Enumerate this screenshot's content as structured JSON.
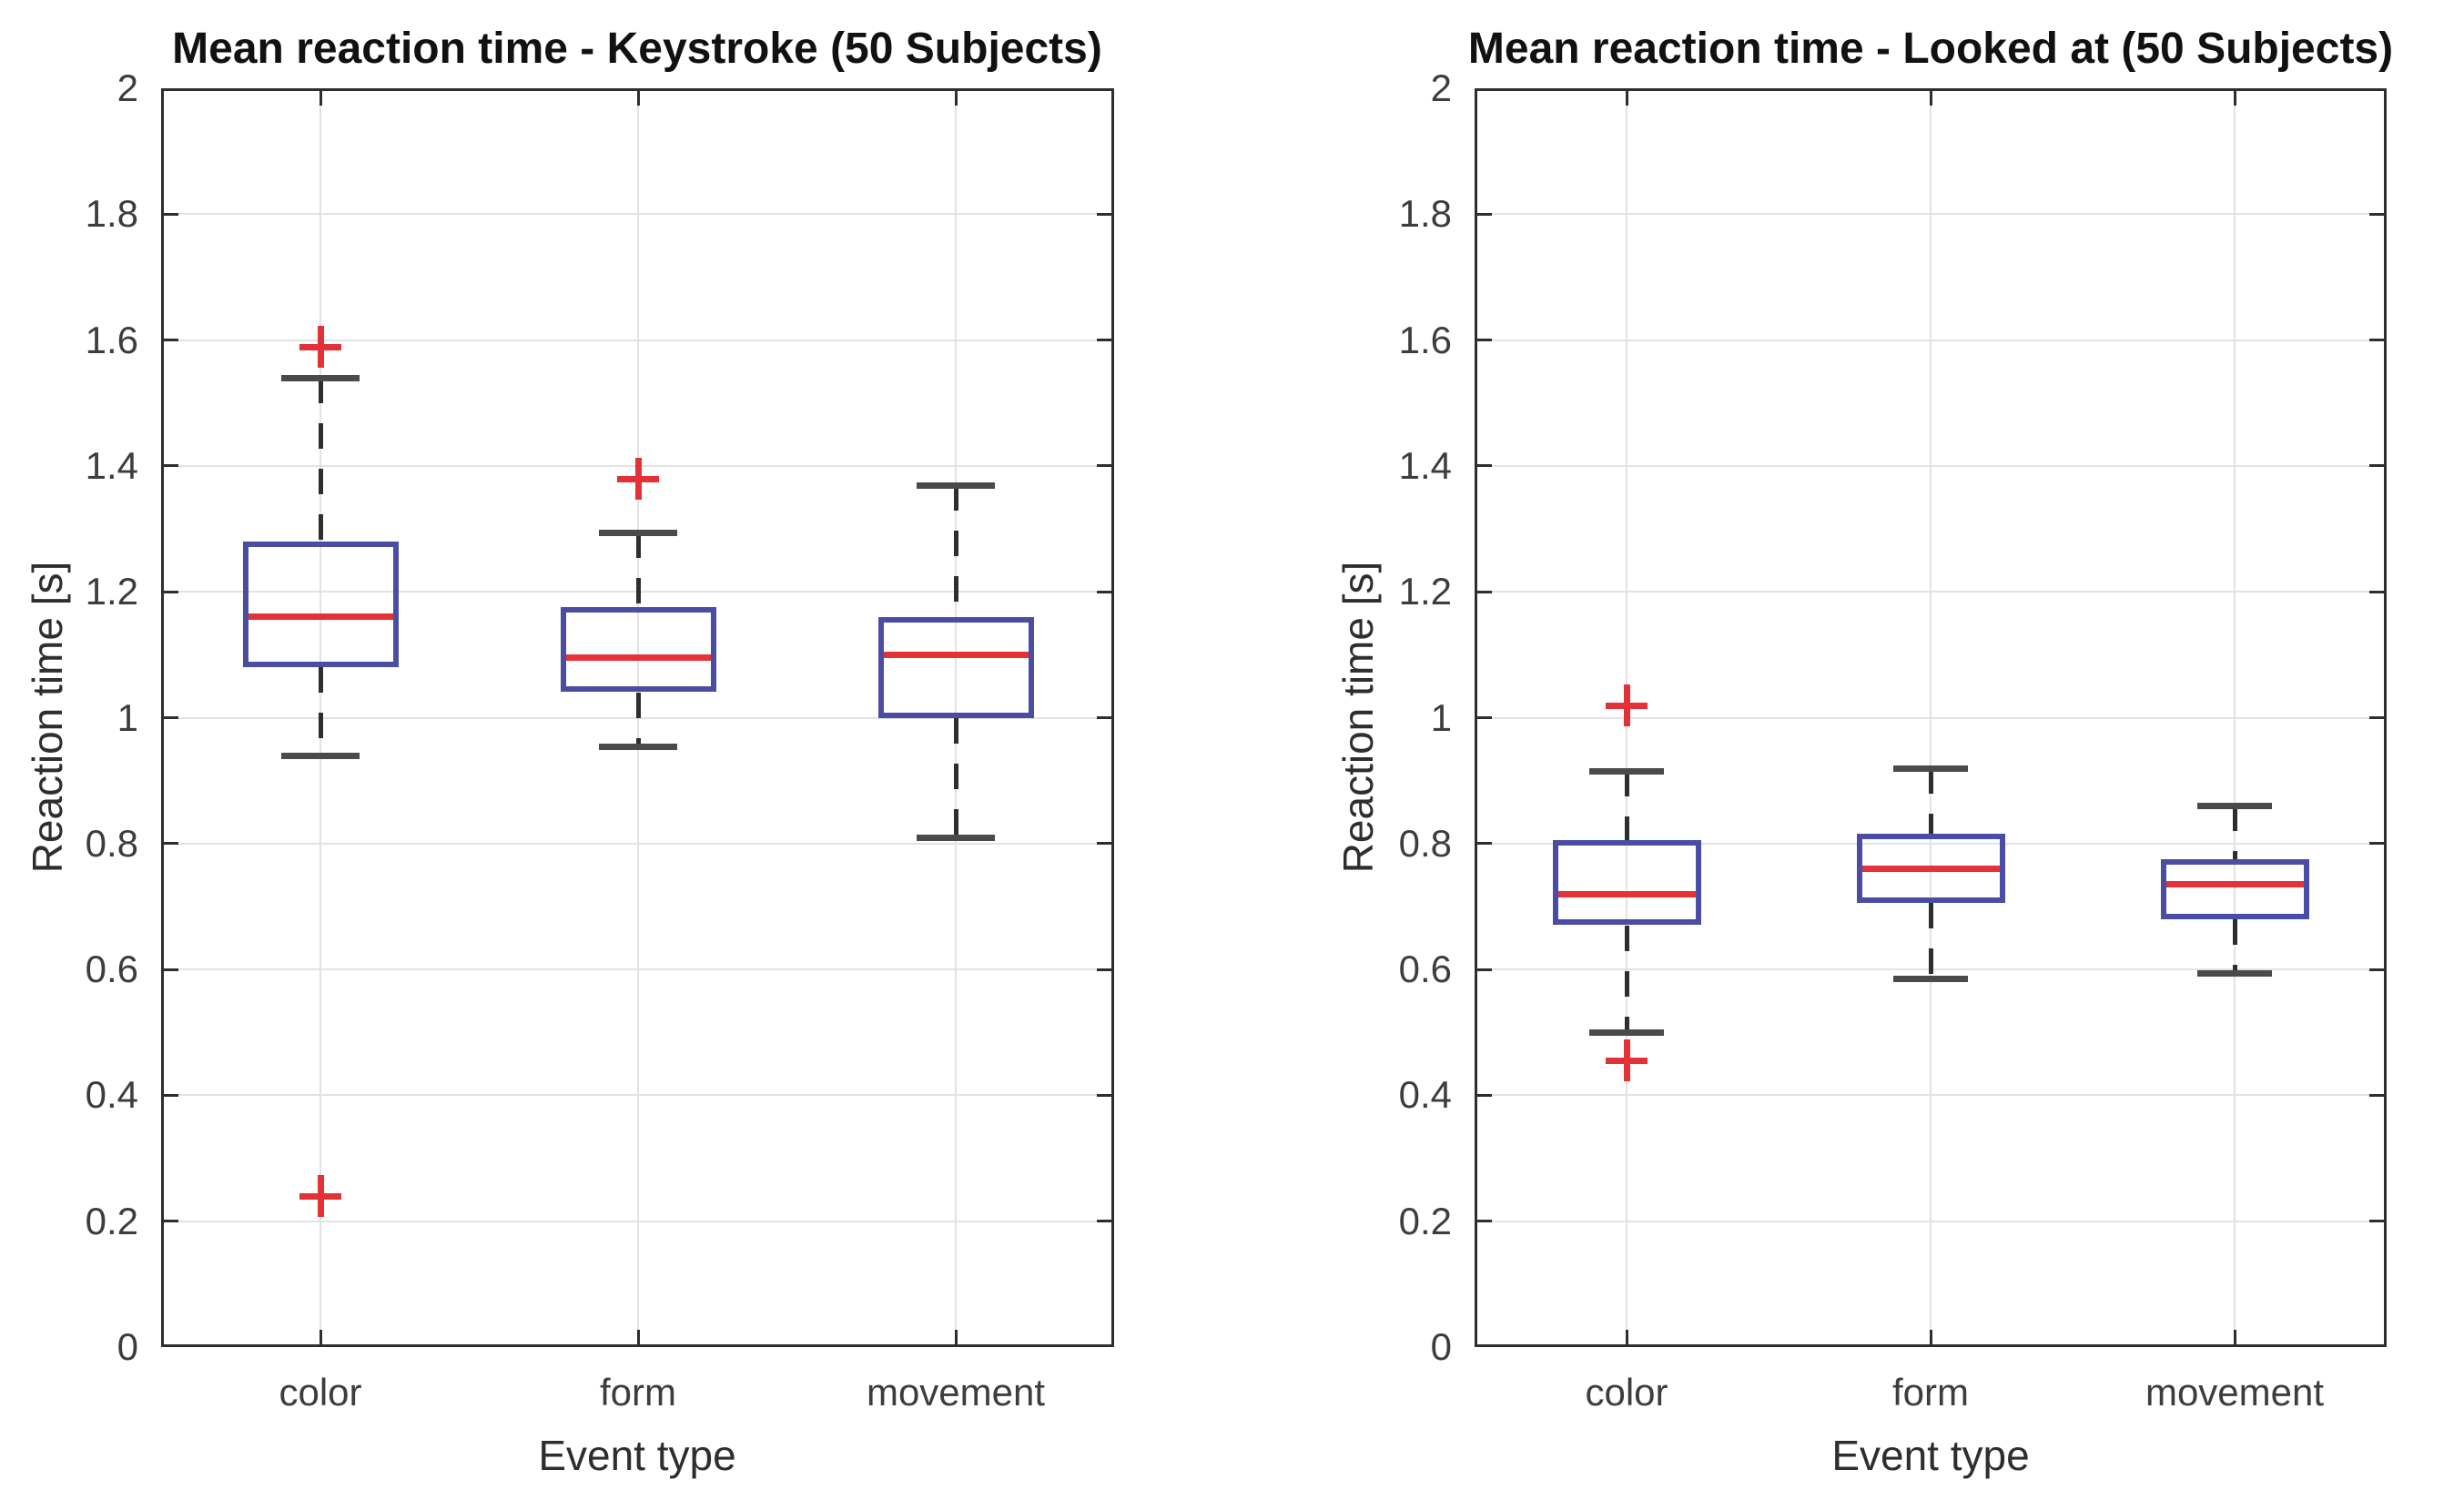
{
  "figure": {
    "background": "#ffffff"
  },
  "chart_data": [
    {
      "type": "boxplot",
      "title": "Mean reaction time - Keystroke (50 Subjects)",
      "xlabel": "Event type",
      "ylabel": "Reaction time [s]",
      "ylim": [
        0,
        2
      ],
      "y_ticks": [
        0,
        0.2,
        0.4,
        0.6,
        0.8,
        1,
        1.2,
        1.4,
        1.6,
        1.8,
        2
      ],
      "y_tick_labels": [
        "0",
        "0.2",
        "0.4",
        "0.6",
        "0.8",
        "1",
        "1.2",
        "1.4",
        "1.6",
        "1.8",
        "2"
      ],
      "categories": [
        "color",
        "form",
        "movement"
      ],
      "grid": true,
      "legend": "none",
      "boxes": [
        {
          "category": "color",
          "whisker_low": 0.94,
          "q1": 1.08,
          "median": 1.16,
          "q3": 1.28,
          "whisker_high": 1.54,
          "outliers": [
            1.59,
            0.24
          ]
        },
        {
          "category": "form",
          "whisker_low": 0.955,
          "q1": 1.04,
          "median": 1.095,
          "q3": 1.175,
          "whisker_high": 1.295,
          "outliers": [
            1.38
          ]
        },
        {
          "category": "movement",
          "whisker_low": 0.81,
          "q1": 1.0,
          "median": 1.1,
          "q3": 1.16,
          "whisker_high": 1.37,
          "outliers": []
        }
      ]
    },
    {
      "type": "boxplot",
      "title": "Mean reaction time - Looked at (50 Subjects)",
      "xlabel": "Event type",
      "ylabel": "Reaction time [s]",
      "ylim": [
        0,
        2
      ],
      "y_ticks": [
        0,
        0.2,
        0.4,
        0.6,
        0.8,
        1,
        1.2,
        1.4,
        1.6,
        1.8,
        2
      ],
      "y_tick_labels": [
        "0",
        "0.2",
        "0.4",
        "0.6",
        "0.8",
        "1",
        "1.2",
        "1.4",
        "1.6",
        "1.8",
        "2"
      ],
      "categories": [
        "color",
        "form",
        "movement"
      ],
      "grid": true,
      "legend": "none",
      "boxes": [
        {
          "category": "color",
          "whisker_low": 0.5,
          "q1": 0.67,
          "median": 0.72,
          "q3": 0.805,
          "whisker_high": 0.915,
          "outliers": [
            1.02,
            0.455
          ]
        },
        {
          "category": "form",
          "whisker_low": 0.585,
          "q1": 0.705,
          "median": 0.76,
          "q3": 0.815,
          "whisker_high": 0.92,
          "outliers": []
        },
        {
          "category": "movement",
          "whisker_low": 0.595,
          "q1": 0.68,
          "median": 0.735,
          "q3": 0.775,
          "whisker_high": 0.86,
          "outliers": []
        }
      ]
    }
  ],
  "style": {
    "box_color": "#4a4da2",
    "median_color": "#e53238",
    "whisker_color": "#2e2e2e",
    "cap_color": "#4a4a4a",
    "outlier_color": "#e43137",
    "grid_color": "#e2e2e2",
    "axis_color": "#2e2e2e",
    "tick_label_color": "#3d3d3d",
    "title_color": "#111111"
  }
}
